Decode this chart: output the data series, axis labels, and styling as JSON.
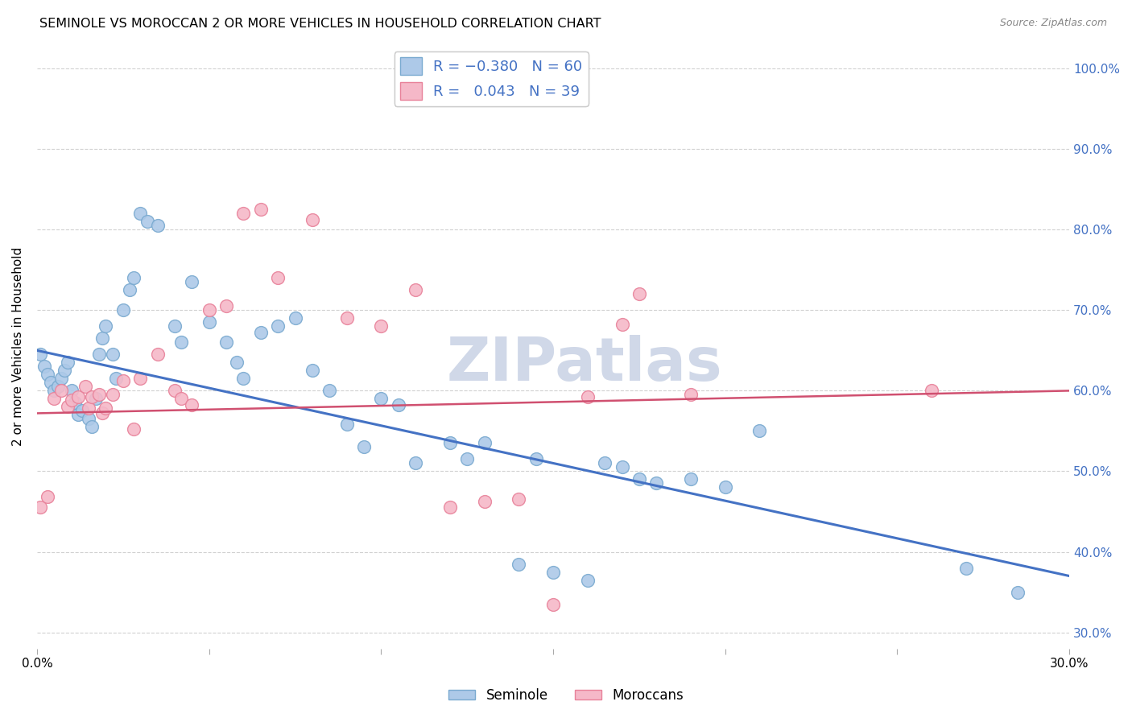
{
  "title": "SEMINOLE VS MOROCCAN 2 OR MORE VEHICLES IN HOUSEHOLD CORRELATION CHART",
  "source": "Source: ZipAtlas.com",
  "ylabel": "2 or more Vehicles in Household",
  "xmin": 0.0,
  "xmax": 0.3,
  "ymin": 0.28,
  "ymax": 1.03,
  "xticks": [
    0.0,
    0.05,
    0.1,
    0.15,
    0.2,
    0.25,
    0.3
  ],
  "yticks": [
    0.3,
    0.4,
    0.5,
    0.6,
    0.7,
    0.8,
    0.9,
    1.0
  ],
  "seminole_color": "#adc9e8",
  "moroccan_color": "#f5b8c8",
  "seminole_edge": "#7aaad0",
  "moroccan_edge": "#e8829a",
  "blue_line_color": "#4472c4",
  "pink_line_color": "#d05070",
  "blue_line_x0": 0.0,
  "blue_line_y0": 0.65,
  "blue_line_x1": 0.3,
  "blue_line_y1": 0.37,
  "pink_line_x0": 0.0,
  "pink_line_y0": 0.572,
  "pink_line_x1": 0.3,
  "pink_line_y1": 0.6,
  "seminole_x": [
    0.001,
    0.002,
    0.003,
    0.004,
    0.005,
    0.006,
    0.007,
    0.008,
    0.009,
    0.01,
    0.011,
    0.012,
    0.013,
    0.015,
    0.016,
    0.017,
    0.018,
    0.019,
    0.02,
    0.022,
    0.023,
    0.025,
    0.027,
    0.028,
    0.03,
    0.032,
    0.035,
    0.04,
    0.042,
    0.045,
    0.05,
    0.055,
    0.058,
    0.06,
    0.065,
    0.07,
    0.075,
    0.08,
    0.085,
    0.09,
    0.095,
    0.1,
    0.105,
    0.11,
    0.12,
    0.125,
    0.13,
    0.14,
    0.145,
    0.15,
    0.16,
    0.165,
    0.17,
    0.175,
    0.18,
    0.19,
    0.2,
    0.21,
    0.27,
    0.285
  ],
  "seminole_y": [
    0.645,
    0.63,
    0.62,
    0.61,
    0.6,
    0.605,
    0.615,
    0.625,
    0.635,
    0.6,
    0.585,
    0.57,
    0.575,
    0.565,
    0.555,
    0.59,
    0.645,
    0.665,
    0.68,
    0.645,
    0.615,
    0.7,
    0.725,
    0.74,
    0.82,
    0.81,
    0.805,
    0.68,
    0.66,
    0.735,
    0.685,
    0.66,
    0.635,
    0.615,
    0.672,
    0.68,
    0.69,
    0.625,
    0.6,
    0.558,
    0.53,
    0.59,
    0.582,
    0.51,
    0.535,
    0.515,
    0.535,
    0.385,
    0.515,
    0.375,
    0.365,
    0.51,
    0.505,
    0.49,
    0.485,
    0.49,
    0.48,
    0.55,
    0.38,
    0.35
  ],
  "moroccan_x": [
    0.001,
    0.003,
    0.005,
    0.007,
    0.009,
    0.01,
    0.012,
    0.014,
    0.015,
    0.016,
    0.018,
    0.019,
    0.02,
    0.022,
    0.025,
    0.028,
    0.03,
    0.035,
    0.04,
    0.042,
    0.045,
    0.05,
    0.055,
    0.06,
    0.065,
    0.07,
    0.08,
    0.09,
    0.1,
    0.11,
    0.12,
    0.13,
    0.14,
    0.15,
    0.16,
    0.17,
    0.175,
    0.19,
    0.26
  ],
  "moroccan_y": [
    0.455,
    0.468,
    0.59,
    0.6,
    0.58,
    0.588,
    0.592,
    0.605,
    0.578,
    0.592,
    0.595,
    0.572,
    0.578,
    0.595,
    0.612,
    0.552,
    0.615,
    0.645,
    0.6,
    0.59,
    0.582,
    0.7,
    0.705,
    0.82,
    0.825,
    0.74,
    0.812,
    0.69,
    0.68,
    0.725,
    0.455,
    0.462,
    0.465,
    0.335,
    0.592,
    0.682,
    0.72,
    0.595,
    0.6
  ],
  "watermark": "ZIPatlas",
  "watermark_color": "#d0d8e8"
}
